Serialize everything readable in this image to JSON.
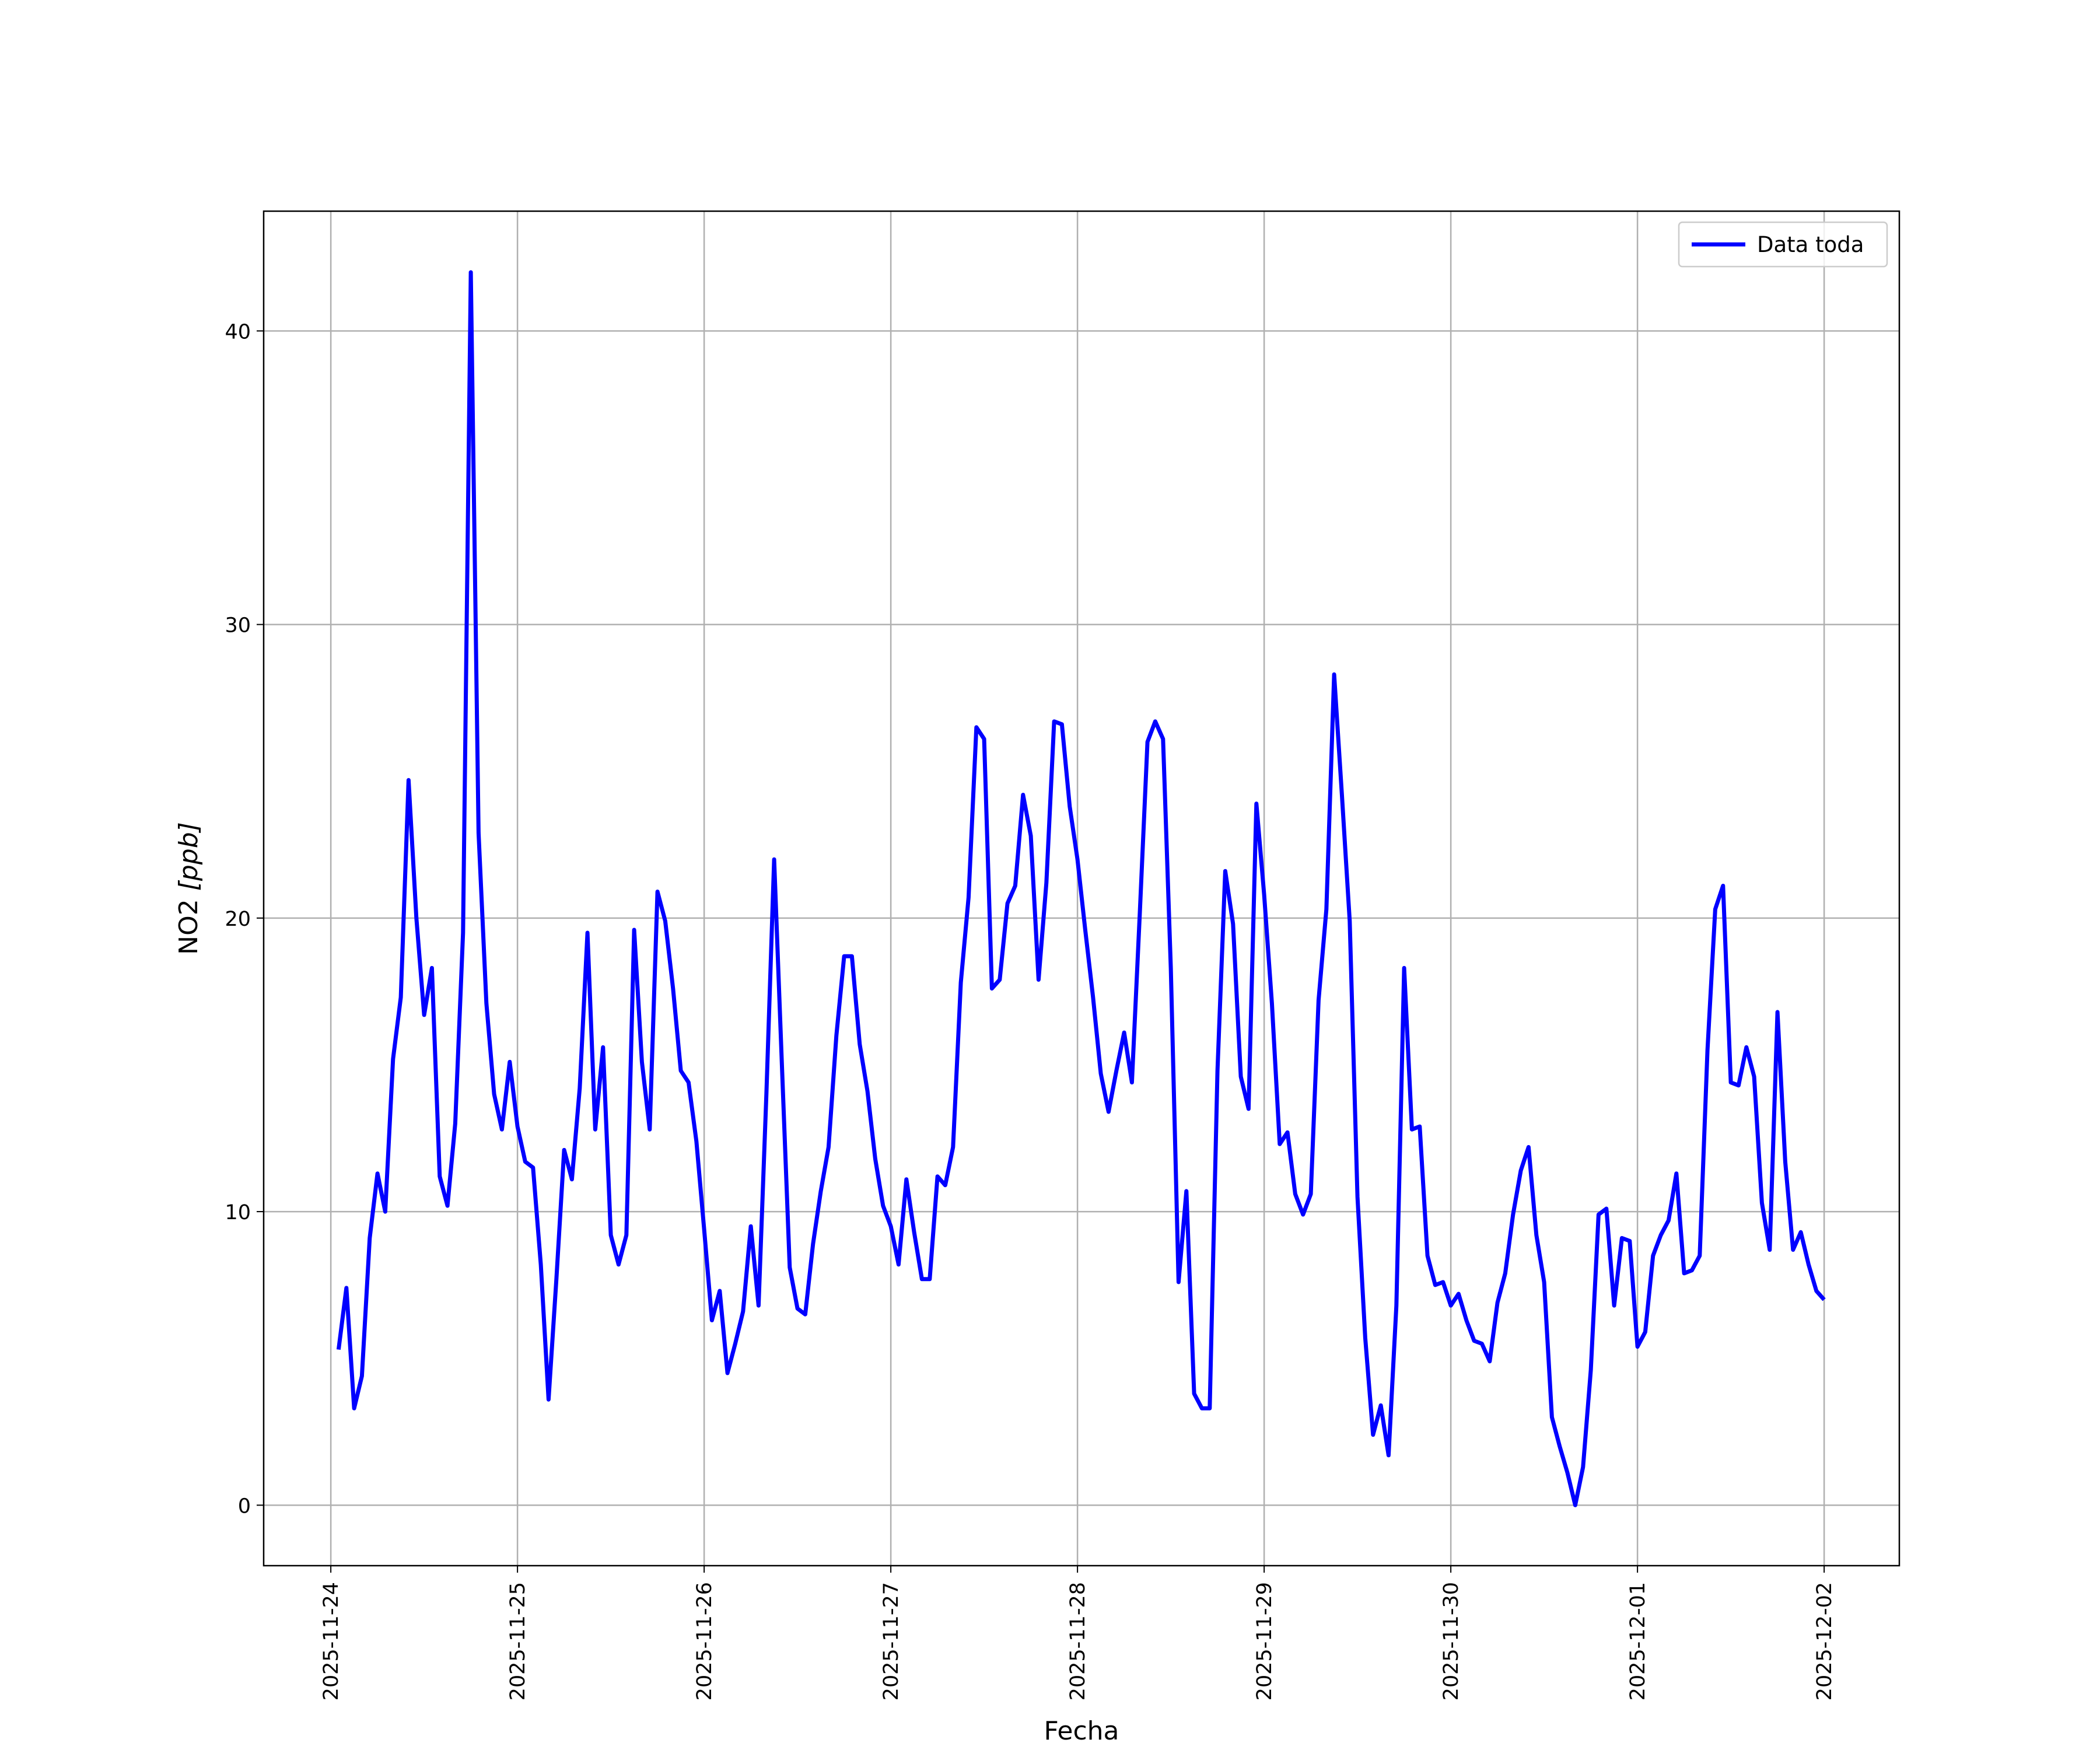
{
  "chart_data": {
    "type": "line",
    "title": "",
    "xlabel": "Fecha",
    "ylabel_main": "NO2 ",
    "ylabel_unit": "[ppb]",
    "xticks": [
      "2025-11-24",
      "2025-11-25",
      "2025-11-26",
      "2025-11-27",
      "2025-11-28",
      "2025-11-29",
      "2025-11-30",
      "2025-12-01",
      "2025-12-02"
    ],
    "yticks": [
      0,
      10,
      20,
      30,
      40
    ],
    "xlim": [
      "2025-11-23 15:22",
      "2025-12-02 09:40"
    ],
    "ylim": [
      -2.06,
      44.08
    ],
    "grid": true,
    "legend_position": "top-right",
    "series": [
      {
        "name": "Data toda",
        "color": "#0000ff",
        "x": [
          "2025-11-24 01:00",
          "2025-11-24 02:00",
          "2025-11-24 03:00",
          "2025-11-24 04:00",
          "2025-11-24 05:00",
          "2025-11-24 06:00",
          "2025-11-24 07:00",
          "2025-11-24 08:00",
          "2025-11-24 09:00",
          "2025-11-24 10:00",
          "2025-11-24 11:00",
          "2025-11-24 12:00",
          "2025-11-24 13:00",
          "2025-11-24 14:00",
          "2025-11-24 15:00",
          "2025-11-24 16:00",
          "2025-11-24 17:00",
          "2025-11-24 18:00",
          "2025-11-24 19:00",
          "2025-11-24 20:00",
          "2025-11-24 21:00",
          "2025-11-24 22:00",
          "2025-11-24 23:00",
          "2025-11-25 00:00",
          "2025-11-25 01:00",
          "2025-11-25 02:00",
          "2025-11-25 03:00",
          "2025-11-25 04:00",
          "2025-11-25 05:00",
          "2025-11-25 06:00",
          "2025-11-25 07:00",
          "2025-11-25 08:00",
          "2025-11-25 09:00",
          "2025-11-25 10:00",
          "2025-11-25 11:00",
          "2025-11-25 12:00",
          "2025-11-25 13:00",
          "2025-11-25 14:00",
          "2025-11-25 15:00",
          "2025-11-25 16:00",
          "2025-11-25 17:00",
          "2025-11-25 18:00",
          "2025-11-25 19:00",
          "2025-11-25 20:00",
          "2025-11-25 21:00",
          "2025-11-25 22:00",
          "2025-11-25 23:00",
          "2025-11-26 00:00",
          "2025-11-26 01:00",
          "2025-11-26 02:00",
          "2025-11-26 03:00",
          "2025-11-26 04:00",
          "2025-11-26 05:00",
          "2025-11-26 06:00",
          "2025-11-26 07:00",
          "2025-11-26 08:00",
          "2025-11-26 09:00",
          "2025-11-26 10:00",
          "2025-11-26 11:00",
          "2025-11-26 12:00",
          "2025-11-26 13:00",
          "2025-11-26 14:00",
          "2025-11-26 15:00",
          "2025-11-26 16:00",
          "2025-11-26 17:00",
          "2025-11-26 18:00",
          "2025-11-26 19:00",
          "2025-11-26 20:00",
          "2025-11-26 21:00",
          "2025-11-26 22:00",
          "2025-11-26 23:00",
          "2025-11-27 00:00",
          "2025-11-27 01:00",
          "2025-11-27 02:00",
          "2025-11-27 03:00",
          "2025-11-27 04:00",
          "2025-11-27 05:00",
          "2025-11-27 06:00",
          "2025-11-27 07:00",
          "2025-11-27 08:00",
          "2025-11-27 09:00",
          "2025-11-27 10:00",
          "2025-11-27 11:00",
          "2025-11-27 12:00",
          "2025-11-27 13:00",
          "2025-11-27 14:00",
          "2025-11-27 15:00",
          "2025-11-27 16:00",
          "2025-11-27 17:00",
          "2025-11-27 18:00",
          "2025-11-27 19:00",
          "2025-11-27 20:00",
          "2025-11-27 21:00",
          "2025-11-27 22:00",
          "2025-11-27 23:00",
          "2025-11-28 00:00",
          "2025-11-28 01:00",
          "2025-11-28 02:00",
          "2025-11-28 03:00",
          "2025-11-28 04:00",
          "2025-11-28 05:00",
          "2025-11-28 06:00",
          "2025-11-28 07:00",
          "2025-11-28 08:00",
          "2025-11-28 09:00",
          "2025-11-28 10:00",
          "2025-11-28 11:00",
          "2025-11-28 12:00",
          "2025-11-28 13:00",
          "2025-11-28 14:00",
          "2025-11-28 15:00",
          "2025-11-28 16:00",
          "2025-11-28 17:00",
          "2025-11-28 18:00",
          "2025-11-28 19:00",
          "2025-11-28 20:00",
          "2025-11-28 21:00",
          "2025-11-28 22:00",
          "2025-11-28 23:00",
          "2025-11-29 00:00",
          "2025-11-29 01:00",
          "2025-11-29 02:00",
          "2025-11-29 03:00",
          "2025-11-29 04:00",
          "2025-11-29 05:00",
          "2025-11-29 06:00",
          "2025-11-29 07:00",
          "2025-11-29 08:00",
          "2025-11-29 09:00",
          "2025-11-29 10:00",
          "2025-11-29 11:00",
          "2025-11-29 12:00",
          "2025-11-29 13:00",
          "2025-11-29 14:00",
          "2025-11-29 15:00",
          "2025-11-29 16:00",
          "2025-11-29 17:00",
          "2025-11-29 18:00",
          "2025-11-29 19:00",
          "2025-11-29 20:00",
          "2025-11-29 21:00",
          "2025-11-29 22:00",
          "2025-11-29 23:00",
          "2025-11-30 00:00",
          "2025-11-30 01:00",
          "2025-11-30 02:00",
          "2025-11-30 03:00",
          "2025-11-30 04:00",
          "2025-11-30 05:00",
          "2025-11-30 06:00",
          "2025-11-30 07:00",
          "2025-11-30 08:00",
          "2025-11-30 09:00",
          "2025-11-30 10:00",
          "2025-11-30 11:00",
          "2025-11-30 12:00",
          "2025-11-30 13:00",
          "2025-11-30 14:00",
          "2025-11-30 15:00",
          "2025-11-30 16:00",
          "2025-11-30 17:00",
          "2025-11-30 18:00",
          "2025-11-30 19:00",
          "2025-11-30 20:00",
          "2025-11-30 21:00",
          "2025-11-30 22:00",
          "2025-11-30 23:00",
          "2025-12-01 00:00",
          "2025-12-01 01:00",
          "2025-12-01 02:00",
          "2025-12-01 03:00",
          "2025-12-01 04:00",
          "2025-12-01 05:00",
          "2025-12-01 06:00",
          "2025-12-01 07:00",
          "2025-12-01 08:00",
          "2025-12-01 09:00",
          "2025-12-01 10:00",
          "2025-12-01 11:00",
          "2025-12-01 12:00",
          "2025-12-01 13:00",
          "2025-12-01 14:00",
          "2025-12-01 15:00",
          "2025-12-01 16:00",
          "2025-12-01 17:00",
          "2025-12-01 18:00",
          "2025-12-01 19:00",
          "2025-12-01 20:00",
          "2025-12-01 21:00",
          "2025-12-01 22:00",
          "2025-12-01 23:00",
          "2025-12-02 00:00"
        ],
        "values": [
          5.3,
          7.4,
          3.3,
          4.4,
          9.1,
          11.3,
          10.0,
          15.2,
          17.3,
          24.7,
          20.0,
          16.7,
          18.3,
          11.2,
          10.2,
          13.0,
          19.5,
          42.0,
          22.9,
          17.1,
          14.0,
          12.8,
          15.1,
          12.9,
          11.7,
          11.5,
          8.2,
          3.6,
          7.7,
          12.1,
          11.1,
          14.2,
          19.5,
          12.8,
          15.6,
          9.2,
          8.2,
          9.2,
          19.6,
          15.1,
          12.8,
          20.9,
          19.9,
          17.6,
          14.8,
          14.4,
          12.4,
          9.4,
          6.3,
          7.3,
          4.5,
          5.5,
          6.6,
          9.5,
          6.8,
          14.0,
          22.0,
          15.0,
          8.1,
          6.7,
          6.5,
          8.9,
          10.7,
          12.2,
          16.0,
          18.7,
          18.7,
          15.7,
          14.1,
          11.8,
          10.2,
          9.5,
          8.2,
          11.1,
          9.3,
          7.7,
          7.7,
          11.2,
          10.9,
          12.2,
          17.8,
          20.7,
          26.5,
          26.1,
          17.6,
          17.9,
          20.5,
          21.1,
          24.2,
          22.8,
          17.9,
          21.2,
          26.7,
          26.6,
          23.8,
          22.0,
          19.6,
          17.3,
          14.7,
          13.4,
          14.8,
          16.1,
          14.4,
          20.1,
          26.0,
          26.7,
          26.1,
          18.3,
          7.6,
          10.7,
          3.8,
          3.3,
          3.3,
          14.8,
          21.6,
          19.8,
          14.6,
          13.5,
          23.9,
          20.8,
          17.1,
          12.3,
          12.7,
          10.6,
          9.9,
          10.6,
          17.2,
          20.3,
          28.3,
          24.2,
          19.9,
          10.5,
          5.7,
          2.4,
          3.4,
          1.7,
          6.8,
          18.3,
          12.8,
          12.9,
          8.5,
          7.5,
          7.6,
          6.8,
          7.2,
          6.3,
          5.6,
          5.5,
          4.9,
          6.9,
          7.9,
          9.9,
          11.4,
          12.2,
          9.2,
          7.6,
          3.0,
          2.0,
          1.1,
          0.0,
          1.3,
          4.6,
          9.9,
          10.1,
          6.8,
          9.1,
          9.0,
          5.4,
          5.9,
          8.5,
          9.2,
          9.7,
          11.3,
          7.9,
          8.0,
          8.5,
          15.5,
          20.3,
          21.1,
          14.4,
          14.3,
          15.6,
          14.6,
          10.3,
          8.7,
          16.8,
          11.7,
          8.7,
          9.3,
          8.2,
          7.3,
          7.0
        ]
      }
    ]
  }
}
